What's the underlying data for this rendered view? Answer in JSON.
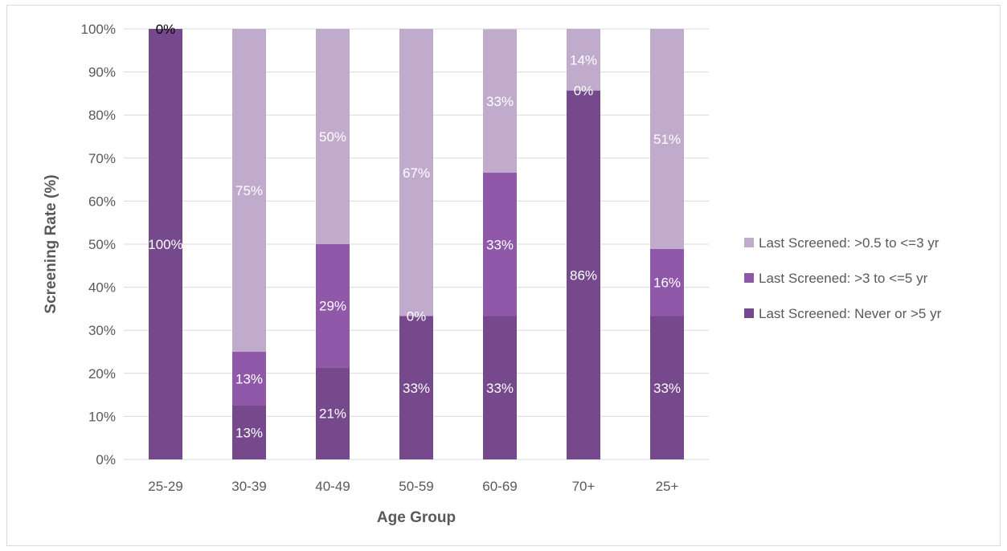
{
  "chart_data": {
    "type": "bar",
    "stacked": true,
    "title": "",
    "xlabel": "Age Group",
    "ylabel": "Screening Rate (%)",
    "ylim": [
      0,
      100
    ],
    "ytick_step": 10,
    "ytick_suffix": "%",
    "grid": true,
    "legend_position": "right",
    "categories": [
      "25-29",
      "30-39",
      "40-49",
      "50-59",
      "60-69",
      "70+",
      "25+"
    ],
    "series": [
      {
        "name": "Last Screened: Never or >5 yr",
        "color": "#75498b",
        "values": [
          100,
          12.5,
          21.4,
          33.3,
          33.3,
          85.7,
          33.3
        ],
        "labels": [
          "100%",
          "13%",
          "21%",
          "33%",
          "33%",
          "86%",
          "33%"
        ]
      },
      {
        "name": "Last Screened: >3 to <=5 yr",
        "color": "#8f58a8",
        "values": [
          0,
          12.5,
          28.6,
          0,
          33.3,
          0,
          15.6
        ],
        "labels": [
          "0%",
          "13%",
          "29%",
          "0%",
          "33%",
          "0%",
          "16%"
        ]
      },
      {
        "name": "Last Screened: >0.5 to <=3 yr",
        "color": "#c1abcd",
        "values": [
          0,
          75,
          50,
          66.7,
          33.3,
          14.3,
          51.1
        ],
        "labels": [
          "",
          "75%",
          "50%",
          "67%",
          "33%",
          "14%",
          "51%"
        ]
      }
    ],
    "label_colors": {
      "on_bar": "#ffffff",
      "on_empty": "#000000",
      "on_axis": "#404040"
    }
  }
}
